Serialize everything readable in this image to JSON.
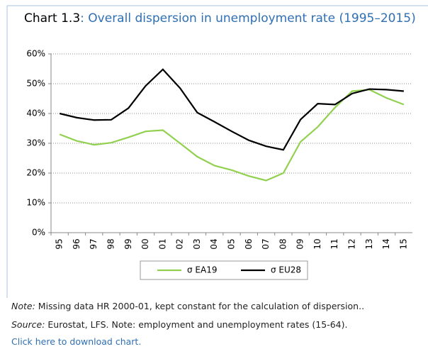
{
  "chart_data": {
    "type": "line",
    "title_number": "Chart 1.3",
    "title": ": Overall dispersion in unemployment rate (1995–2015)",
    "categories": [
      "95",
      "96",
      "97",
      "98",
      "99",
      "00",
      "01",
      "02",
      "03",
      "04",
      "05",
      "06",
      "07",
      "08",
      "09",
      "10",
      "11",
      "12",
      "13",
      "14",
      "15"
    ],
    "series": [
      {
        "name": "σ EA19",
        "color": "#92d050",
        "values": [
          33,
          30.8,
          29.5,
          30.2,
          32,
          34,
          34.4,
          30,
          25.5,
          22.5,
          21,
          19,
          17.5,
          20,
          30.5,
          35.5,
          42,
          47.5,
          48,
          45.2,
          43
        ]
      },
      {
        "name": "σ EU28",
        "color": "#000000",
        "values": [
          40,
          38.6,
          37.8,
          37.9,
          41.8,
          49.3,
          54.8,
          48.5,
          40.3,
          37.2,
          34,
          31,
          29,
          27.8,
          38,
          43.3,
          43,
          46.7,
          48.2,
          48,
          47.5
        ]
      }
    ],
    "ylim": [
      0,
      60
    ],
    "yticks": [
      {
        "value": 0,
        "label": "0%"
      },
      {
        "value": 10,
        "label": "10%"
      },
      {
        "value": 20,
        "label": "20%"
      },
      {
        "value": 30,
        "label": "30%"
      },
      {
        "value": 40,
        "label": "40%"
      },
      {
        "value": 50,
        "label": "50%"
      },
      {
        "value": 60,
        "label": "60%"
      }
    ],
    "grid": true,
    "legend": "bottom"
  },
  "footer": {
    "note_label": "Note:",
    "note": " Missing data HR 2000-01, kept constant  for the calculation of dispersion..",
    "source_label": "Source:",
    "source": " Eurostat, LFS. Note: employment and unemployment rates (15-64).",
    "link": "Click here to download chart."
  }
}
